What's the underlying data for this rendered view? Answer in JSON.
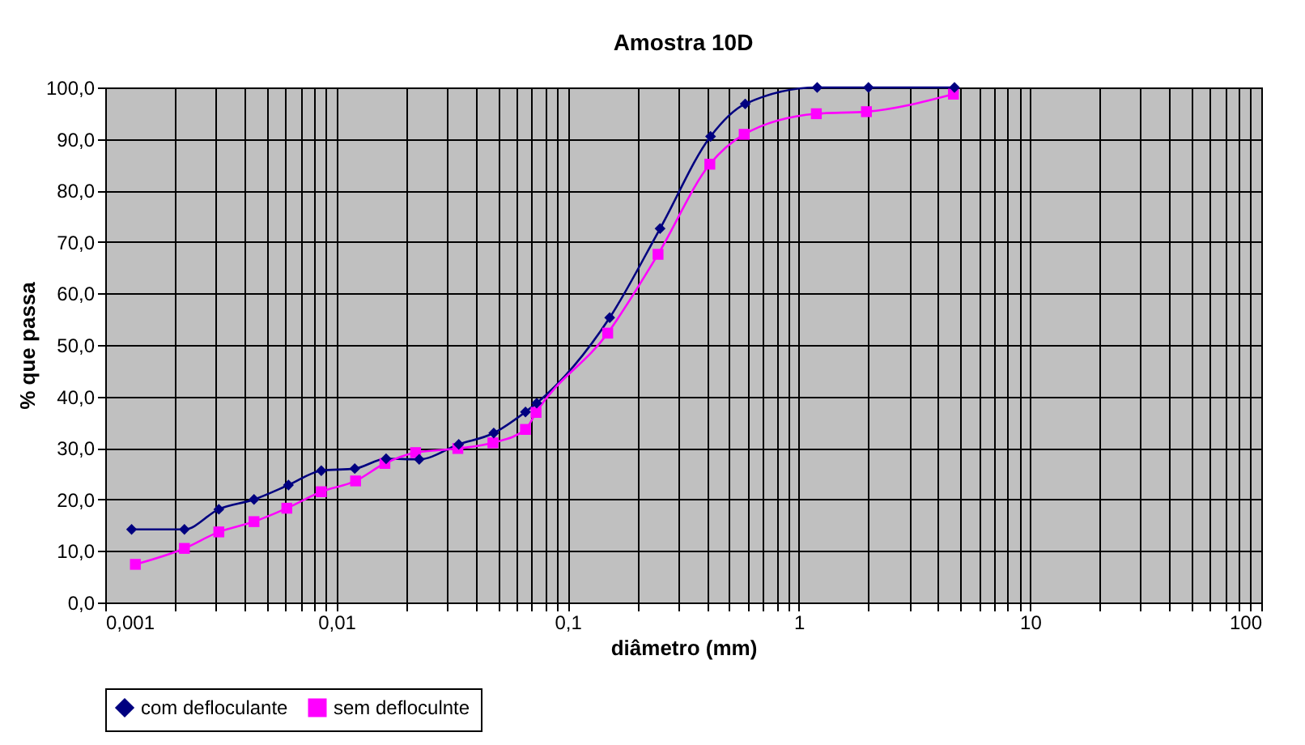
{
  "chart_data": {
    "type": "line",
    "title": "Amostra 10D",
    "xlabel": "diâmetro (mm)",
    "ylabel": "% que passa",
    "log": "x",
    "grid": true,
    "legend": "bottom",
    "line_style": "solid",
    "xlim": [
      0.001,
      100
    ],
    "ylim": [
      0,
      100
    ],
    "xticks": [
      {
        "value": 0.001,
        "label": "0,001"
      },
      {
        "value": 0.002,
        "label": null
      },
      {
        "value": 0.003,
        "label": null
      },
      {
        "value": 0.004,
        "label": null
      },
      {
        "value": 0.005,
        "label": null
      },
      {
        "value": 0.006,
        "label": null
      },
      {
        "value": 0.007,
        "label": null
      },
      {
        "value": 0.008,
        "label": null
      },
      {
        "value": 0.009,
        "label": null
      },
      {
        "value": 0.01,
        "label": "0,01"
      },
      {
        "value": 0.02,
        "label": null
      },
      {
        "value": 0.03,
        "label": null
      },
      {
        "value": 0.04,
        "label": null
      },
      {
        "value": 0.05,
        "label": null
      },
      {
        "value": 0.06,
        "label": null
      },
      {
        "value": 0.07,
        "label": null
      },
      {
        "value": 0.08,
        "label": null
      },
      {
        "value": 0.09,
        "label": null
      },
      {
        "value": 0.1,
        "label": "0,1"
      },
      {
        "value": 0.2,
        "label": null
      },
      {
        "value": 0.3,
        "label": null
      },
      {
        "value": 0.4,
        "label": null
      },
      {
        "value": 0.5,
        "label": null
      },
      {
        "value": 0.6,
        "label": null
      },
      {
        "value": 0.7,
        "label": null
      },
      {
        "value": 0.8,
        "label": null
      },
      {
        "value": 0.9,
        "label": null
      },
      {
        "value": 1,
        "label": "1"
      },
      {
        "value": 2,
        "label": null
      },
      {
        "value": 3,
        "label": null
      },
      {
        "value": 4,
        "label": null
      },
      {
        "value": 5,
        "label": null
      },
      {
        "value": 6,
        "label": null
      },
      {
        "value": 7,
        "label": null
      },
      {
        "value": 8,
        "label": null
      },
      {
        "value": 9,
        "label": null
      },
      {
        "value": 10,
        "label": "10"
      },
      {
        "value": 20,
        "label": null
      },
      {
        "value": 30,
        "label": null
      },
      {
        "value": 40,
        "label": null
      },
      {
        "value": 50,
        "label": null
      },
      {
        "value": 60,
        "label": null
      },
      {
        "value": 70,
        "label": null
      },
      {
        "value": 80,
        "label": null
      },
      {
        "value": 90,
        "label": null
      },
      {
        "value": 100,
        "label": "100"
      }
    ],
    "yticks": [
      {
        "value": 0,
        "label": "0,0"
      },
      {
        "value": 10,
        "label": "10,0"
      },
      {
        "value": 20,
        "label": "20,0"
      },
      {
        "value": 30,
        "label": "30,0"
      },
      {
        "value": 40,
        "label": "40,0"
      },
      {
        "value": 50,
        "label": "50,0"
      },
      {
        "value": 60,
        "label": "60,0"
      },
      {
        "value": 70,
        "label": "70,0"
      },
      {
        "value": 80,
        "label": "80,0"
      },
      {
        "value": 90,
        "label": "90,0"
      },
      {
        "value": 100,
        "label": "100,0"
      }
    ],
    "series": [
      {
        "name": "com defloculante",
        "color": "#000080",
        "marker": "diamond",
        "x": [
          0.0013,
          0.0022,
          0.0031,
          0.0044,
          0.0062,
          0.0086,
          0.012,
          0.0164,
          0.0228,
          0.0338,
          0.0479,
          0.0657,
          0.0735,
          0.152,
          0.251,
          0.415,
          0.586,
          1.2,
          2.0,
          4.71
        ],
        "values": [
          14.2,
          14.2,
          18.1,
          20.0,
          22.8,
          25.6,
          26.0,
          27.9,
          27.8,
          30.7,
          32.9,
          37.0,
          38.7,
          55.3,
          72.6,
          90.5,
          96.8,
          100.0,
          100.0,
          100.0
        ]
      },
      {
        "name": "sem defloculnte",
        "color": "#ff00ff",
        "marker": "square",
        "x": [
          0.00135,
          0.0022,
          0.0031,
          0.0044,
          0.0061,
          0.0086,
          0.0121,
          0.0162,
          0.022,
          0.0335,
          0.0475,
          0.0657,
          0.073,
          0.149,
          0.246,
          0.412,
          0.58,
          1.19,
          1.96,
          4.66
        ],
        "values": [
          7.4,
          10.5,
          13.7,
          15.7,
          18.3,
          21.5,
          23.6,
          27.0,
          29.1,
          29.9,
          31.0,
          33.6,
          36.9,
          52.3,
          67.6,
          85.1,
          90.9,
          94.9,
          95.3,
          98.7
        ]
      }
    ]
  }
}
